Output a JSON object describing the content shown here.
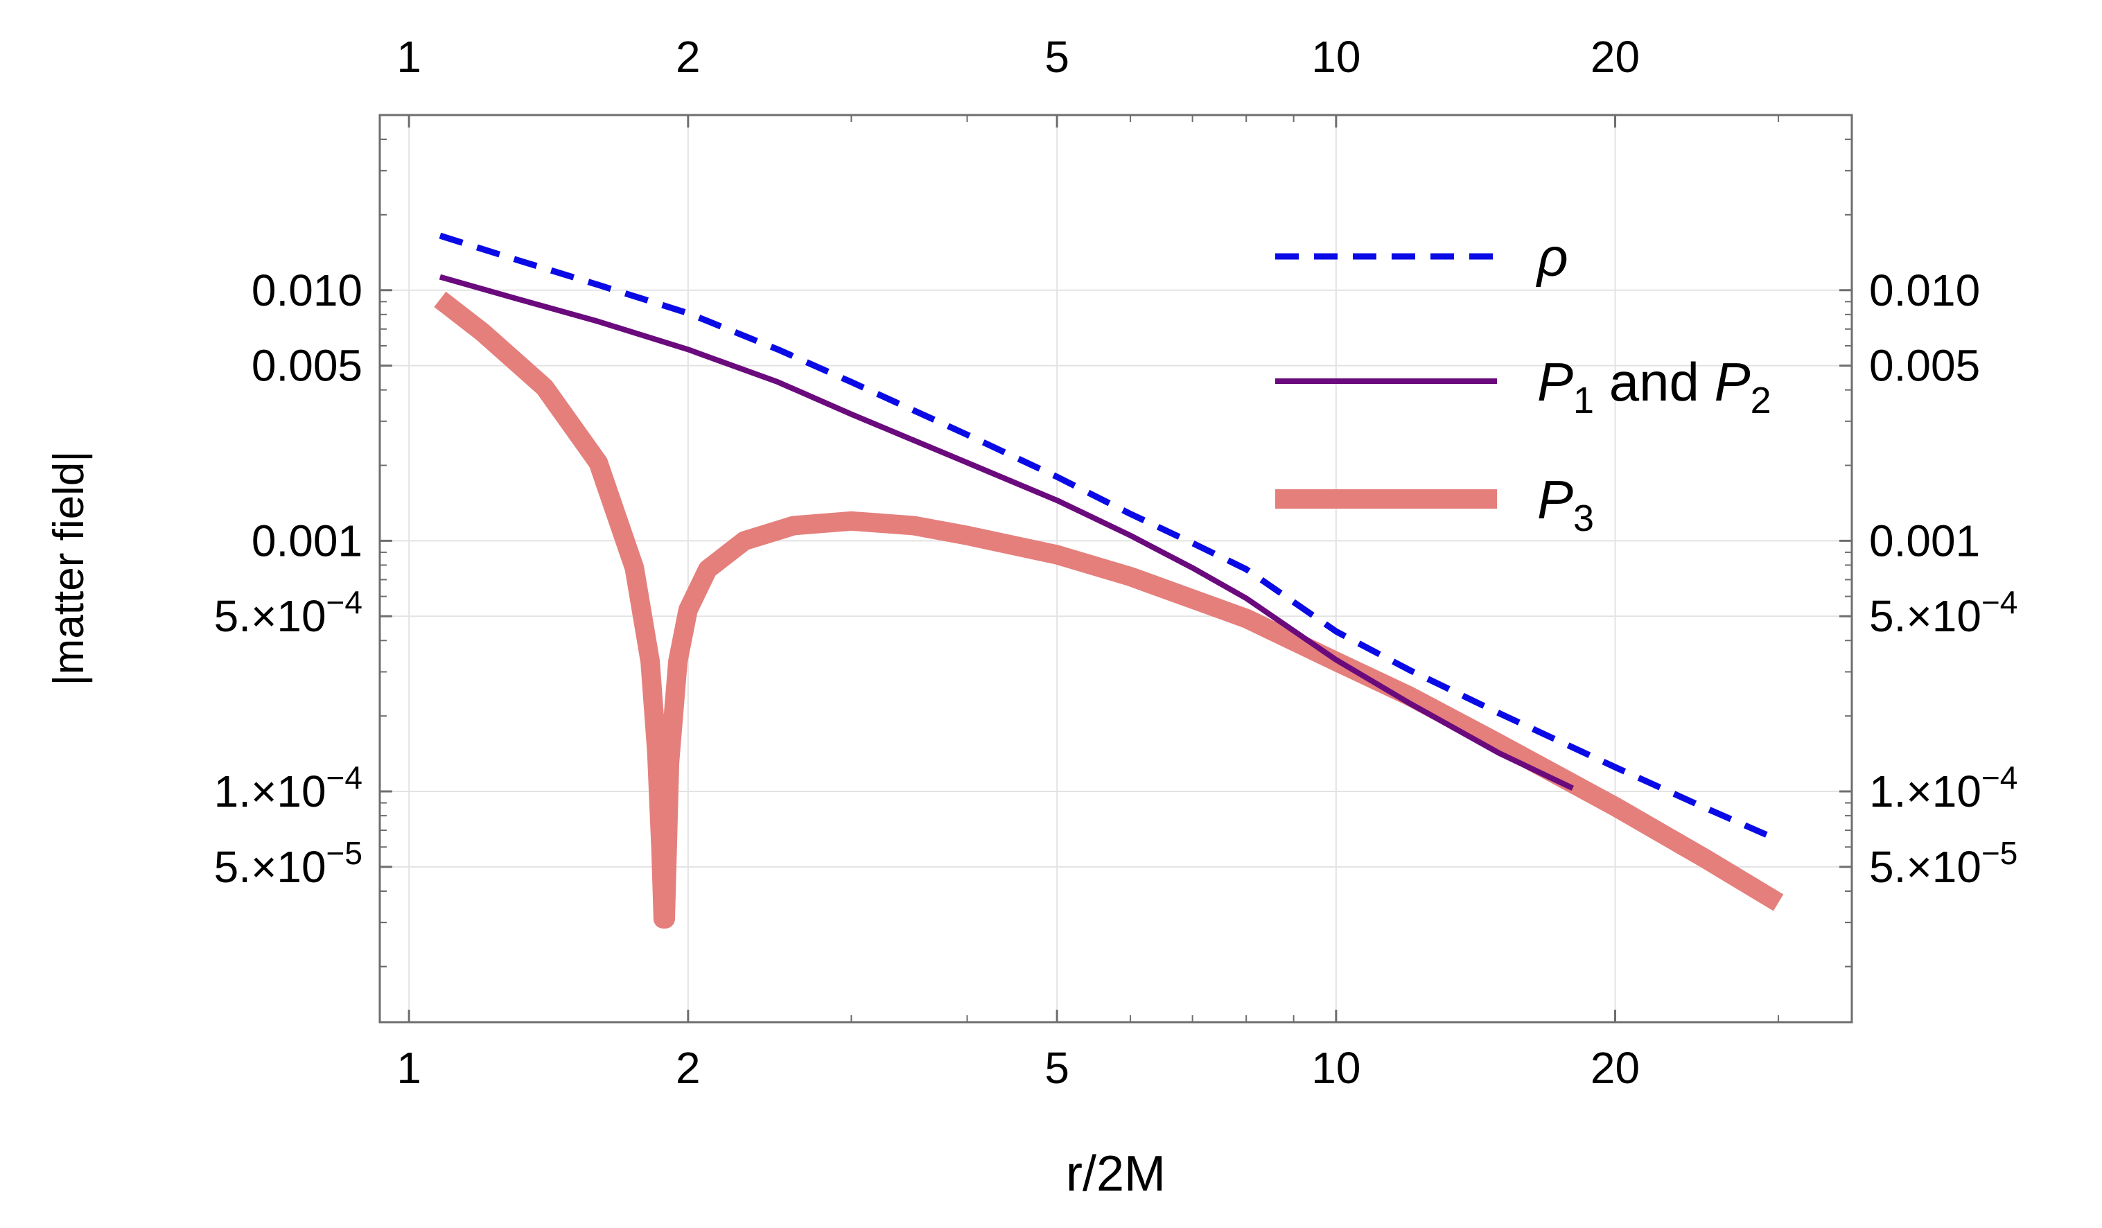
{
  "chart_data": {
    "type": "line",
    "title": "",
    "xlabel": "r/2M",
    "ylabel": "|matter field|",
    "x_scale": "log",
    "y_scale": "log",
    "xlim": [
      0.93,
      36
    ],
    "ylim": [
      1.2e-05,
      0.05
    ],
    "x_ticks": [
      {
        "value": 1,
        "label": "1"
      },
      {
        "value": 2,
        "label": "2"
      },
      {
        "value": 5,
        "label": "5"
      },
      {
        "value": 10,
        "label": "10"
      },
      {
        "value": 20,
        "label": "20"
      }
    ],
    "y_ticks": [
      {
        "value": 0.01,
        "mant": "0.010",
        "exp": ""
      },
      {
        "value": 0.005,
        "mant": "0.005",
        "exp": ""
      },
      {
        "value": 0.001,
        "mant": "0.001",
        "exp": ""
      },
      {
        "value": 0.0005,
        "mant": "5.×10",
        "exp": "−4"
      },
      {
        "value": 0.0001,
        "mant": "1.×10",
        "exp": "−4"
      },
      {
        "value": 5e-05,
        "mant": "5.×10",
        "exp": "−5"
      }
    ],
    "grid": true,
    "legend_position": "top-right",
    "series": [
      {
        "name": "ρ",
        "legend_main": "ρ",
        "legend_parts": [
          {
            "t": "ρ",
            "style": "italic"
          }
        ],
        "color": "#0a0ae6",
        "style": "dashed",
        "x": [
          1.08,
          1.3,
          1.6,
          2.0,
          2.5,
          3.0,
          4.0,
          5.0,
          6.0,
          7.0,
          8.0,
          10.0,
          12.0,
          15.0,
          20.0,
          25.0,
          30.0
        ],
        "y": [
          0.0165,
          0.0133,
          0.0105,
          0.0081,
          0.0058,
          0.0043,
          0.00265,
          0.0018,
          0.00128,
          0.00098,
          0.00077,
          0.000435,
          0.000305,
          0.000205,
          0.000125,
          8.6e-05,
          6.4e-05
        ]
      },
      {
        "name": "P1 and P2",
        "legend_main": "P1 and P2",
        "legend_parts": [
          {
            "t": "P",
            "style": "italic"
          },
          {
            "t": "1",
            "style": "sub"
          },
          {
            "t": " and ",
            "style": "normal"
          },
          {
            "t": "P",
            "style": "italic"
          },
          {
            "t": "2",
            "style": "sub"
          }
        ],
        "color": "#6a0a7d",
        "style": "solid",
        "x": [
          1.08,
          1.3,
          1.6,
          2.0,
          2.5,
          3.0,
          4.0,
          5.0,
          6.0,
          7.0,
          8.0,
          10.0,
          12.0,
          15.0,
          18.0
        ],
        "y": [
          0.0113,
          0.0093,
          0.0075,
          0.0058,
          0.0043,
          0.0032,
          0.00205,
          0.00145,
          0.00105,
          0.00078,
          0.00059,
          0.000335,
          0.000225,
          0.000142,
          0.000103
        ]
      },
      {
        "name": "P3",
        "legend_main": "P3",
        "legend_parts": [
          {
            "t": "P",
            "style": "italic"
          },
          {
            "t": "3",
            "style": "sub"
          }
        ],
        "color": "#e57f7c",
        "style": "thick",
        "x": [
          1.08,
          1.2,
          1.4,
          1.6,
          1.75,
          1.82,
          1.85,
          1.87,
          1.88,
          1.89,
          1.91,
          1.95,
          2.0,
          2.1,
          2.3,
          2.6,
          3.0,
          3.5,
          4.0,
          5.0,
          6.0,
          8.0,
          10.0,
          12.0,
          15.0,
          20.0,
          25.0,
          30.0
        ],
        "y": [
          0.0092,
          0.0068,
          0.0041,
          0.00205,
          0.00078,
          0.00033,
          0.000145,
          5.8e-05,
          3.1e-05,
          3.1e-05,
          0.00013,
          0.00033,
          0.00053,
          0.00077,
          0.001,
          0.00115,
          0.0012,
          0.00115,
          0.00105,
          0.00088,
          0.00072,
          0.00049,
          0.00033,
          0.00024,
          0.000155,
          8.7e-05,
          5.4e-05,
          3.6e-05
        ]
      }
    ]
  }
}
